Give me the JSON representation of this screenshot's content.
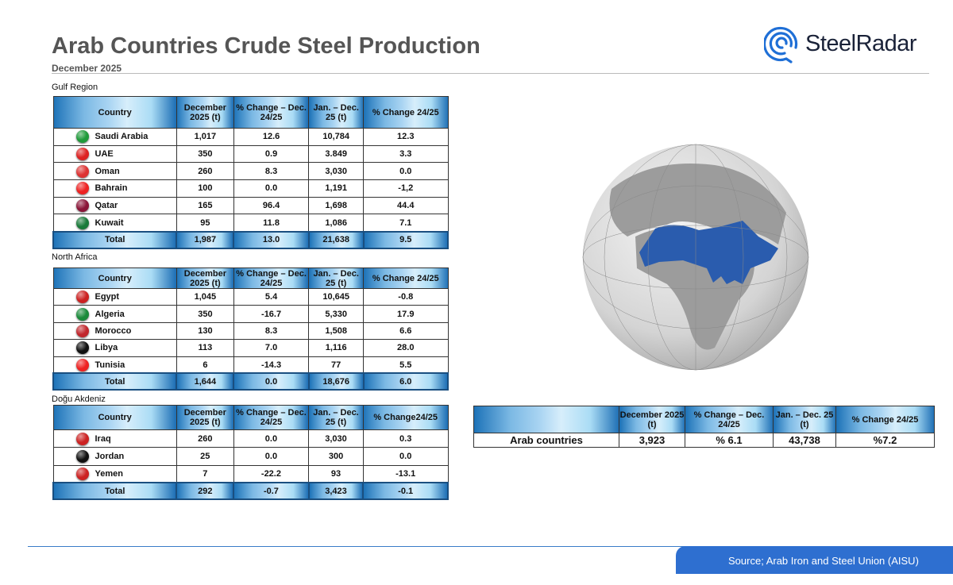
{
  "header": {
    "title": "Arab Countries Crude Steel Production",
    "subtitle": "December 2025",
    "logo": "SteelRadar"
  },
  "columns": [
    "Country",
    "December 2025 (t)",
    "% Change – Dec. 24/25",
    "Jan. – Dec. 25 (t)",
    "% Change  24/25"
  ],
  "columns_na": [
    "Country",
    "December 2025 (t)",
    "% Change – Dec. 24/25",
    "Jan. – Dec. 25 (t)",
    "% Change 24/25"
  ],
  "columns_me": [
    "Country",
    "December 2025 (t)",
    "% Change – Dec. 24/25",
    "Jan. – Dec. 25 (t)",
    "% Change24/25"
  ],
  "sections": [
    {
      "label": "Gulf Region",
      "rows": [
        [
          "Saudi Arabia",
          "1,017",
          "12.6",
          "10,784",
          "12.3"
        ],
        [
          "UAE",
          "350",
          "0.9",
          "3.849",
          "3.3"
        ],
        [
          "Oman",
          "260",
          "8.3",
          "3,030",
          "0.0"
        ],
        [
          "Bahrain",
          "100",
          "0.0",
          "1,191",
          "-1,2"
        ],
        [
          "Qatar",
          "165",
          "96.4",
          "1,698",
          "44.4"
        ],
        [
          "Kuwait",
          "95",
          "11.8",
          "1,086",
          "7.1"
        ]
      ],
      "total": [
        "Total",
        "1,987",
        "13.0",
        "21,638",
        "9.5"
      ]
    },
    {
      "label": "North Africa",
      "rows": [
        [
          "Egypt",
          "1,045",
          "5.4",
          "10,645",
          "-0.8"
        ],
        [
          "Algeria",
          "350",
          "-16.7",
          "5,330",
          "17.9"
        ],
        [
          "Morocco",
          "130",
          "8.3",
          "1,508",
          "6.6"
        ],
        [
          "Libya",
          "113",
          "7.0",
          "1,116",
          "28.0"
        ],
        [
          "Tunisia",
          "6",
          "-14.3",
          "77",
          "5.5"
        ]
      ],
      "total": [
        "Total",
        "1,644",
        "0.0",
        "18,676",
        "6.0"
      ]
    },
    {
      "label": "Doğu Akdeniz",
      "rows": [
        [
          "Iraq",
          "260",
          "0.0",
          "3,030",
          "0.3"
        ],
        [
          "Jordan",
          "25",
          "0.0",
          "300",
          "0.0"
        ],
        [
          "Yemen",
          "7",
          "-22.2",
          "93",
          "-13.1"
        ]
      ],
      "total": [
        "Total",
        "292",
        "-0.7",
        "3,423",
        "-0.1"
      ]
    }
  ],
  "summary": {
    "columns": [
      "",
      "December 2025 (t)",
      "% Change – Dec. 24/25",
      "Jan. – Dec. 25 (t)",
      "% Change  24/25"
    ],
    "row": [
      "Arab countries",
      "3,923",
      "% 6.1",
      "43,738",
      "%7.2"
    ]
  },
  "flags": {
    "Saudi Arabia": "#1f9a3a",
    "UAE": "#d22",
    "Oman": "#d33",
    "Bahrain": "#e22",
    "Qatar": "#8a1538",
    "Kuwait": "#1a7a3a",
    "Egypt": "#c22",
    "Algeria": "#1a8a3a",
    "Morocco": "#c1272d",
    "Libya": "#111",
    "Tunisia": "#e22",
    "Iraq": "#c22",
    "Jordan": "#111",
    "Yemen": "#c22"
  },
  "footer": {
    "source": "Source;  Arab Iron and Steel Union (AISU)"
  },
  "colors": {
    "accent": "#2e6fd0",
    "highlight": "#2a5cae"
  }
}
